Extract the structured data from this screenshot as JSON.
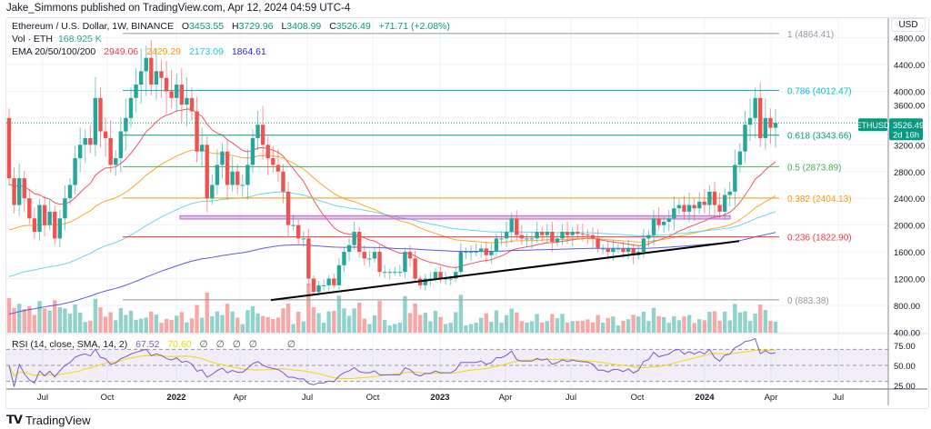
{
  "header": {
    "published": "Jake_Simmons published on TradingView.com, Apr 12, 2024 04:59 UTC-4"
  },
  "legend": {
    "symbol": "Ethereum / U.S. Dollar, 1W, BINANCE",
    "open_label": "O",
    "open": "3453.55",
    "high_label": "H",
    "high": "3729.96",
    "low_label": "L",
    "low": "3408.99",
    "close_label": "C",
    "close": "3526.49",
    "change": "+71.71 (+2.08%)",
    "vol_label": "Vol · ETH",
    "vol_value": "168.925 K",
    "ema_label": "EMA 20/50/100/200",
    "ema_values": [
      "2949.06",
      "2429.29",
      "2173.09",
      "1864.61"
    ],
    "rsi_label": "RSI (14, close, SMA, 14, 2)",
    "rsi_value": "67.52",
    "rsi_sma_value": "70.60",
    "rsi_na": [
      "∅",
      "∅",
      "∅",
      "∅",
      "∅"
    ]
  },
  "price_axis": {
    "currency": "USD",
    "ticks": [
      "4800.00",
      "4400.00",
      "4000.00",
      "3600.00",
      "3200.00",
      "2800.00",
      "2400.00",
      "2000.00",
      "1600.00",
      "1200.00",
      "800.00",
      "400.00"
    ],
    "rsi_ticks": [
      "75.00",
      "50.00",
      "25.00"
    ],
    "last_symbol": "ETHUSD",
    "last_price": "3526.49",
    "countdown": "2d 16h"
  },
  "time_axis": {
    "ticks": [
      "Jul",
      "Oct",
      "2022",
      "Apr",
      "Jul",
      "Oct",
      "2023",
      "Apr",
      "Jul",
      "Oct",
      "2024",
      "Apr",
      "Jul"
    ]
  },
  "colors": {
    "up": "#26a69a",
    "down": "#ef5350",
    "ema20": "#f23645",
    "ema50": "#ff9800",
    "ema100": "#4dd0e1",
    "ema200": "#3f3fe0",
    "rsi": "#7e57c2",
    "rsi_sma": "#f5d800",
    "label_bg": "#089981"
  },
  "brand": {
    "name": "TradingView",
    "logo_text": "TV"
  },
  "chart_data": {
    "type": "candlestick",
    "title": "Ethereum / U.S. Dollar, 1W, BINANCE",
    "interval": "1W",
    "period": [
      "May 2021",
      "Apr 2024"
    ],
    "ylim": [
      400,
      4900
    ],
    "y_scale": "linear",
    "grid": true,
    "weekly_close": [
      2700,
      2300,
      2700,
      2400,
      2100,
      1900,
      2300,
      2000,
      2200,
      1800,
      2100,
      2400,
      2600,
      3000,
      3200,
      3300,
      3200,
      3900,
      3400,
      3300,
      2900,
      3000,
      3400,
      3600,
      3900,
      4100,
      4300,
      4500,
      4100,
      4300,
      4200,
      4000,
      3900,
      4100,
      3800,
      3900,
      3700,
      3100,
      3200,
      2400,
      2600,
      2900,
      3100,
      2600,
      2800,
      2600,
      2600,
      2900,
      3300,
      3500,
      3200,
      3000,
      2900,
      2800,
      2500,
      2000,
      2000,
      1800,
      1800,
      1200,
      1000,
      1100,
      1100,
      1200,
      1100,
      1400,
      1600,
      1700,
      1900,
      1600,
      1500,
      1500,
      1600,
      1300,
      1300,
      1300,
      1300,
      1300,
      1600,
      1500,
      1200,
      1100,
      1200,
      1200,
      1300,
      1200,
      1200,
      1200,
      1300,
      1600,
      1600,
      1600,
      1600,
      1650,
      1550,
      1600,
      1800,
      1800,
      1900,
      2100,
      1850,
      1800,
      1800,
      1800,
      1900,
      1850,
      1900,
      1750,
      1800,
      1900,
      1850,
      1900,
      1870,
      1860,
      1850,
      1800,
      1650,
      1650,
      1600,
      1650,
      1650,
      1600,
      1650,
      1550,
      1600,
      1800,
      1850,
      2100,
      2000,
      2050,
      2100,
      2250,
      2300,
      2200,
      2300,
      2250,
      2350,
      2300,
      2500,
      2300,
      2200,
      2450,
      2500,
      2900,
      3100,
      3500,
      3600,
      3900,
      3300,
      3600,
      3454,
      3526
    ],
    "fib_levels": [
      {
        "ratio": "1",
        "price": "4864.41",
        "label": "1 (4864.41)",
        "color": "#9598a1"
      },
      {
        "ratio": "0.786",
        "price": "4012.47",
        "label": "0.786 (4012.47)",
        "color": "#00bcd4"
      },
      {
        "ratio": "0.618",
        "price": "3343.66",
        "label": "0.618 (3343.66)",
        "color": "#089981"
      },
      {
        "ratio": "0.5",
        "price": "2873.89",
        "label": "0.5 (2873.89)",
        "color": "#4caf50"
      },
      {
        "ratio": "0.382",
        "price": "2404.13",
        "label": "0.382 (2404.13)",
        "color": "#ff9800"
      },
      {
        "ratio": "0.236",
        "price": "1822.90",
        "label": "0.236 (1822.90)",
        "color": "#f23645"
      },
      {
        "ratio": "0",
        "price": "883.38",
        "label": "0 (883.38)",
        "color": "#9598a1"
      }
    ],
    "resistance_zone": {
      "price_low": 2090,
      "price_high": 2140,
      "color": "#ba68c8"
    },
    "trendline": {
      "from": {
        "date": "Jun 2022",
        "price": 880
      },
      "to": {
        "date": "Mar 2024",
        "price": 1760
      },
      "color": "#000000"
    },
    "rsi_levels": [
      70,
      50,
      30
    ]
  }
}
